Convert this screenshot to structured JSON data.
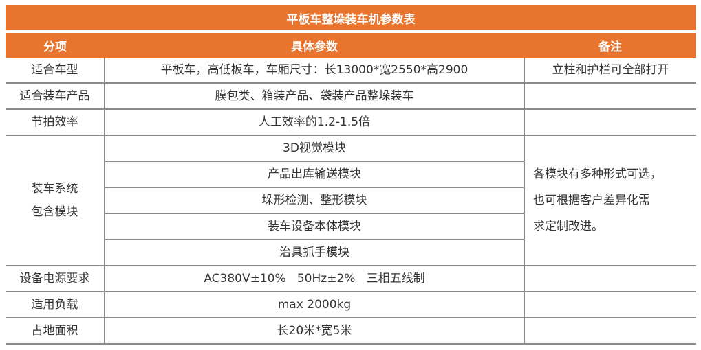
{
  "title": "平板车整垛装车机参数表",
  "headers": [
    "分项",
    "具体参数",
    "备注"
  ],
  "rows": [
    {
      "item": "适合车型",
      "param": "平板车，高低板车，车厢尺寸：长13000*宽2550*高2900",
      "note": "立柱和护栏可全部打开"
    },
    {
      "item": "适合装车产品",
      "param": "膜包类、箱装产品、袋装产品整垛装车",
      "note": ""
    },
    {
      "item": "节拍效率",
      "param": "人工效率的1.2-1.5倍",
      "note": ""
    }
  ],
  "modules": {
    "item_line1": "装车系统",
    "item_line2": "包含模块",
    "list": [
      "3D视觉模块",
      "产品出库输送模块",
      "垛形检测、整形模块",
      "装车设备本体模块",
      "治具抓手模块"
    ],
    "note_lines": [
      "各模块有多种形式可选，",
      "也可根据客户差异化需",
      "求定制改进。"
    ]
  },
  "rows2": [
    {
      "item": "设备电源要求",
      "param": "AC380V±10%   50Hz±2%   三相五线制",
      "note": ""
    },
    {
      "item": "适用负载",
      "param": "max 2000kg",
      "note": ""
    },
    {
      "item": "占地面积",
      "param": "长20米*宽5米",
      "note": ""
    }
  ],
  "colors": {
    "accent": "#E8742E",
    "line": "#8a8a8a",
    "text": "#333333"
  }
}
